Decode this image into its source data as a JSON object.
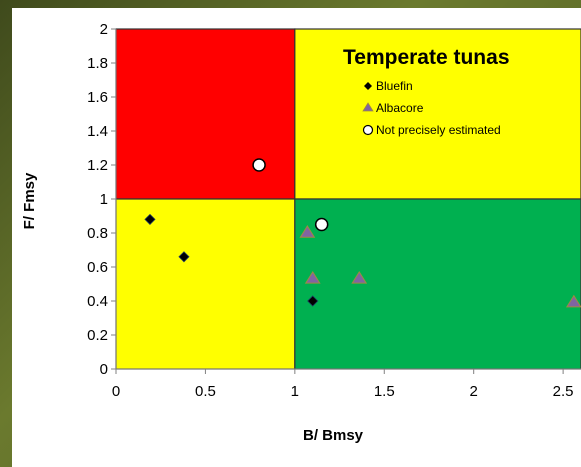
{
  "chart_data": {
    "type": "scatter",
    "title": "Temperate tunas",
    "xlabel": "B/ Bmsy",
    "ylabel": "F/ Fmsy",
    "xlim": [
      0,
      2.6
    ],
    "ylim": [
      0,
      2
    ],
    "xticks": [
      "0",
      "0.5",
      "1",
      "1.5",
      "2",
      "2.5"
    ],
    "xtick_values": [
      0,
      0.5,
      1,
      1.5,
      2,
      2.5
    ],
    "yticks": [
      "0",
      "0.2",
      "0.4",
      "0.6",
      "0.8",
      "1",
      "1.2",
      "1.4",
      "1.6",
      "1.8",
      "2"
    ],
    "ytick_values": [
      0,
      0.2,
      0.4,
      0.6,
      0.8,
      1,
      1.2,
      1.4,
      1.6,
      1.8,
      2
    ],
    "quadrants": [
      {
        "x": [
          0,
          1
        ],
        "y": [
          1,
          2
        ],
        "color": "#ff0000"
      },
      {
        "x": [
          1,
          2.6
        ],
        "y": [
          1,
          2
        ],
        "color": "#ffff00"
      },
      {
        "x": [
          0,
          1
        ],
        "y": [
          0,
          1
        ],
        "color": "#ffff00"
      },
      {
        "x": [
          1,
          2.6
        ],
        "y": [
          0,
          1
        ],
        "color": "#00b050"
      }
    ],
    "series": [
      {
        "name": "Bluefin",
        "marker": "diamond",
        "color": "#000000",
        "points": [
          [
            0.19,
            0.88
          ],
          [
            0.38,
            0.66
          ],
          [
            1.1,
            0.4
          ]
        ]
      },
      {
        "name": "Albacore",
        "marker": "triangle",
        "color": "#8064a2",
        "points": [
          [
            1.07,
            0.8
          ],
          [
            1.1,
            0.53
          ],
          [
            1.36,
            0.53
          ],
          [
            2.56,
            0.39
          ]
        ]
      },
      {
        "name": "Not precisely estimated",
        "marker": "circle",
        "color": "#ffffff",
        "points": [
          [
            0.8,
            1.2
          ],
          [
            1.15,
            0.85
          ]
        ]
      }
    ],
    "legend_position": "top-right"
  }
}
